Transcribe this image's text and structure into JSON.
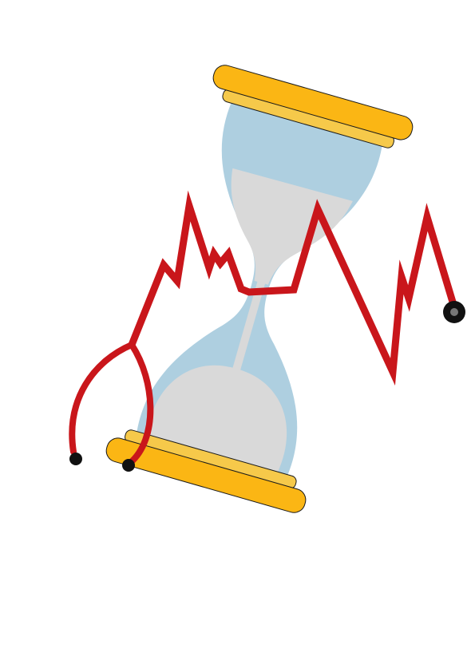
{
  "illustration": {
    "icons": [
      "hourglass-icon",
      "stethoscope-icon",
      "heartbeat-line-icon"
    ],
    "colors": {
      "background": "#ffffff",
      "hourglass_cap": "#fbb614",
      "hourglass_cap_rim": "#f6c94a",
      "outline": "#1a1a1a",
      "glass": "#aecfe0",
      "sand": "#d9d9d9",
      "heartbeat": "#c9161b",
      "stethoscope_tube": "#c9161b",
      "stethoscope_tips": "#111111",
      "chest_piece_center": "#777777"
    }
  }
}
